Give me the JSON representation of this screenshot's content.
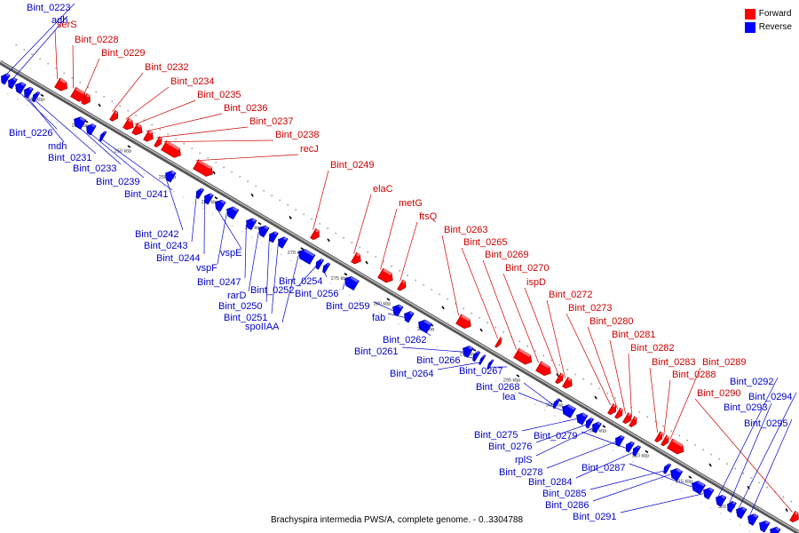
{
  "caption": "Brachyspira intermedia PWS/A, complete genome. - 0..3304788",
  "legend": {
    "forward_label": "Forward",
    "reverse_label": "Reverse",
    "forward_color": "#ff0000",
    "reverse_color": "#0000ff"
  },
  "colors": {
    "forward_text": "#cc0000",
    "reverse_text": "#0000cc",
    "backbone": "#777777"
  },
  "scale_ticks": [
    "240 kbp",
    "245 kbp",
    "250 kbp",
    "255 kbp",
    "260 kbp",
    "265 kbp",
    "270 kbp",
    "275 kbp",
    "280 kbp",
    "285 kbp",
    "290 kbp",
    "295 kbp",
    "300 kbp",
    "305 kbp",
    "310 kbp",
    "315 kbp",
    "320 kbp"
  ],
  "forward_genes": [
    "serS",
    "Bint_0228",
    "Bint_0229",
    "Bint_0232",
    "Bint_0234",
    "Bint_0235",
    "Bint_0236",
    "Bint_0237",
    "Bint_0238",
    "recJ",
    "Bint_0249",
    "elaC",
    "metG",
    "ftsQ",
    "Bint_0263",
    "Bint_0265",
    "Bint_0269",
    "Bint_0270",
    "ispD",
    "Bint_0272",
    "Bint_0273",
    "Bint_0280",
    "Bint_0281",
    "Bint_0282",
    "Bint_0283",
    "Bint_0288",
    "Bint_0289",
    "Bint_0290"
  ],
  "reverse_genes": [
    "Bint_0223",
    "adh",
    "Bint_0226",
    "mdh",
    "Bint_0231",
    "Bint_0233",
    "Bint_0239",
    "Bint_0241",
    "Bint_0242",
    "Bint_0243",
    "Bint_0244",
    "vspE",
    "vspF",
    "Bint_0247",
    "rarD",
    "Bint_0250",
    "Bint_0251",
    "spoIIAA",
    "Bint_0252",
    "Bint_0254",
    "Bint_0256",
    "Bint_0259",
    "fab",
    "Bint_0262",
    "Bint_0261",
    "Bint_0266",
    "Bint_0264",
    "Bint_0267",
    "Bint_0268",
    "lea",
    "Bint_0275",
    "Bint_0276",
    "rplS",
    "Bint_0278",
    "Bint_0279",
    "Bint_0284",
    "Bint_0285",
    "Bint_0286",
    "Bint_0287",
    "Bint_0291",
    "Bint_0292",
    "Bint_0293",
    "Bint_0294",
    "Bint_0295"
  ]
}
